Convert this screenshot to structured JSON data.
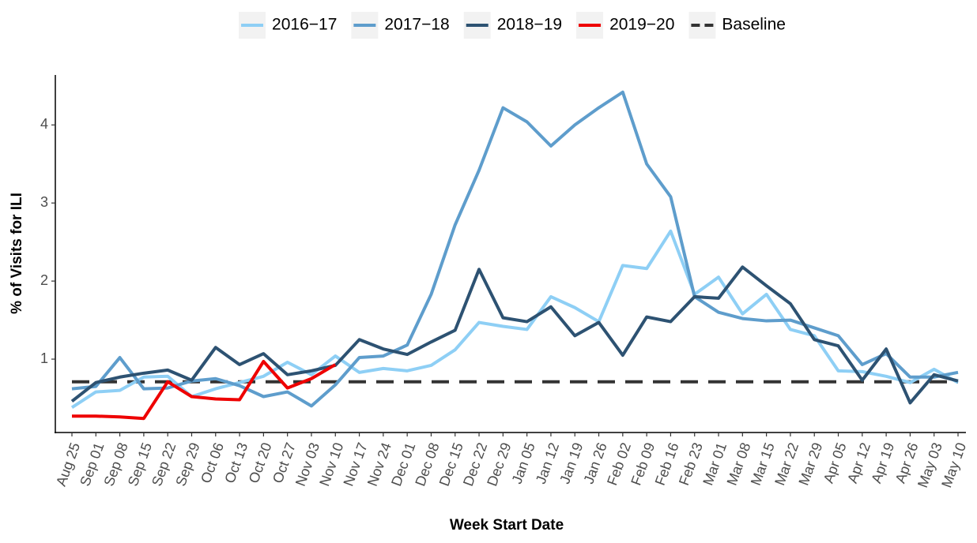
{
  "chart_data": {
    "type": "line",
    "x_label": "Week Start Date",
    "y_label": "% of Visits for ILI",
    "categories": [
      "Aug 25",
      "Sep 01",
      "Sep 08",
      "Sep 15",
      "Sep 22",
      "Sep 29",
      "Oct 06",
      "Oct 13",
      "Oct 20",
      "Oct 27",
      "Nov 03",
      "Nov 10",
      "Nov 17",
      "Nov 24",
      "Dec 01",
      "Dec 08",
      "Dec 15",
      "Dec 22",
      "Dec 29",
      "Jan 05",
      "Jan 12",
      "Jan 19",
      "Jan 26",
      "Feb 02",
      "Feb 09",
      "Feb 16",
      "Feb 23",
      "Mar 01",
      "Mar 08",
      "Mar 15",
      "Mar 22",
      "Mar 29",
      "Apr 05",
      "Apr 12",
      "Apr 19",
      "Apr 26",
      "May 03",
      "May 10"
    ],
    "series": [
      {
        "name": "2016−17",
        "color": "#8ecff5",
        "values": [
          0.38,
          0.58,
          0.6,
          0.77,
          0.78,
          0.52,
          0.62,
          0.7,
          0.78,
          0.96,
          0.8,
          1.04,
          0.83,
          0.88,
          0.85,
          0.92,
          1.12,
          1.47,
          1.42,
          1.38,
          1.8,
          1.66,
          1.48,
          2.2,
          2.16,
          2.64,
          1.83,
          2.05,
          1.58,
          1.83,
          1.38,
          1.3,
          0.85,
          0.84,
          0.78,
          0.7,
          0.87,
          0.7
        ]
      },
      {
        "name": "2017−18",
        "color": "#5e9dcc",
        "values": [
          0.62,
          0.65,
          1.02,
          0.62,
          0.63,
          0.72,
          0.75,
          0.66,
          0.52,
          0.58,
          0.4,
          0.67,
          1.02,
          1.04,
          1.18,
          1.83,
          2.72,
          3.42,
          4.22,
          4.04,
          3.73,
          4.0,
          4.22,
          4.42,
          3.5,
          3.08,
          1.8,
          1.6,
          1.52,
          1.49,
          1.5,
          1.4,
          1.3,
          0.93,
          1.07,
          0.77,
          0.77,
          0.83
        ]
      },
      {
        "name": "2018−19",
        "color": "#2d5272",
        "values": [
          0.46,
          0.7,
          0.77,
          0.82,
          0.86,
          0.73,
          1.15,
          0.93,
          1.07,
          0.8,
          0.85,
          0.92,
          1.25,
          1.13,
          1.06,
          1.22,
          1.37,
          2.15,
          1.53,
          1.48,
          1.67,
          1.3,
          1.47,
          1.05,
          1.54,
          1.48,
          1.8,
          1.78,
          2.18,
          1.94,
          1.71,
          1.25,
          1.17,
          0.73,
          1.13,
          0.44,
          0.8,
          0.72
        ]
      },
      {
        "name": "2019−20",
        "color": "#ee0000",
        "values": [
          0.27,
          0.27,
          0.26,
          0.24,
          0.71,
          0.52,
          0.49,
          0.48,
          0.97,
          0.63,
          0.75,
          0.93,
          null,
          null,
          null,
          null,
          null,
          null,
          null,
          null,
          null,
          null,
          null,
          null,
          null,
          null,
          null,
          null,
          null,
          null,
          null,
          null,
          null,
          null,
          null,
          null,
          null,
          null
        ]
      }
    ],
    "baseline": {
      "name": "Baseline",
      "value": 0.71,
      "color": "#333333"
    },
    "ylim": [
      0.06,
      4.64
    ],
    "yticks": [
      1,
      2,
      3,
      4
    ],
    "legend": "top"
  }
}
